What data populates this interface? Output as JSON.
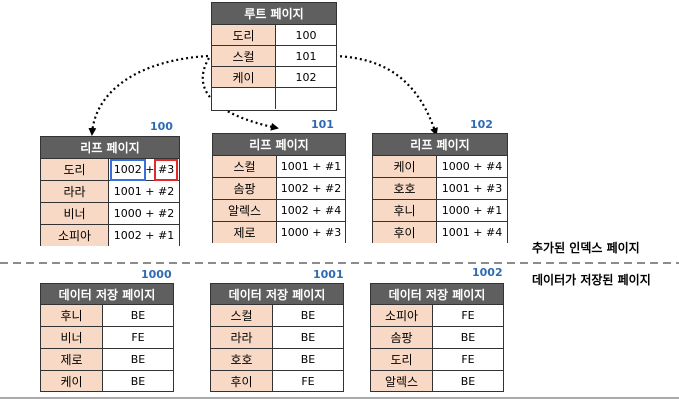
{
  "root_page": {
    "title": "루트 페이지",
    "rows": [
      {
        "key": "도리",
        "value": "100"
      },
      {
        "key": "스컬",
        "value": "101"
      },
      {
        "key": "케이",
        "value": "102"
      },
      {
        "key": "",
        "value": ""
      }
    ]
  },
  "leaf_pages": [
    {
      "number": "100",
      "title": "리프 페이지",
      "rows": [
        {
          "key": "도리",
          "page": "1002",
          "sep": " + ",
          "slot": "#3"
        },
        {
          "key": "라라",
          "page": "1001",
          "sep": " + ",
          "slot": "#2"
        },
        {
          "key": "비너",
          "page": "1000",
          "sep": " + ",
          "slot": "#2"
        },
        {
          "key": "소피아",
          "page": "1002",
          "sep": " + ",
          "slot": "#1"
        }
      ]
    },
    {
      "number": "101",
      "title": "리프 페이지",
      "rows": [
        {
          "key": "스컬",
          "page": "1001",
          "sep": " + ",
          "slot": "#1"
        },
        {
          "key": "솜팡",
          "page": "1002",
          "sep": " + ",
          "slot": "#2"
        },
        {
          "key": "알렉스",
          "page": "1002",
          "sep": " + ",
          "slot": "#4"
        },
        {
          "key": "제로",
          "page": "1000",
          "sep": " + ",
          "slot": "#3"
        }
      ]
    },
    {
      "number": "102",
      "title": "리프 페이지",
      "rows": [
        {
          "key": "케이",
          "page": "1000",
          "sep": " + ",
          "slot": "#4"
        },
        {
          "key": "호호",
          "page": "1001",
          "sep": " + ",
          "slot": "#3"
        },
        {
          "key": "후니",
          "page": "1000",
          "sep": " + ",
          "slot": "#1"
        },
        {
          "key": "후이",
          "page": "1001",
          "sep": " + ",
          "slot": "#4"
        }
      ]
    }
  ],
  "data_pages": [
    {
      "number": "1000",
      "title": "데이터 저장 페이지",
      "rows": [
        {
          "name": "후니",
          "role": "BE"
        },
        {
          "name": "비너",
          "role": "FE"
        },
        {
          "name": "제로",
          "role": "BE"
        },
        {
          "name": "케이",
          "role": "BE"
        }
      ]
    },
    {
      "number": "1001",
      "title": "데이터 저장 페이지",
      "rows": [
        {
          "name": "스컬",
          "role": "BE"
        },
        {
          "name": "라라",
          "role": "BE"
        },
        {
          "name": "호호",
          "role": "BE"
        },
        {
          "name": "후이",
          "role": "FE"
        }
      ]
    },
    {
      "number": "1002",
      "title": "데이터 저장 페이지",
      "rows": [
        {
          "name": "소피아",
          "role": "FE"
        },
        {
          "name": "솜팡",
          "role": "BE"
        },
        {
          "name": "도리",
          "role": "FE"
        },
        {
          "name": "알렉스",
          "role": "BE"
        }
      ]
    }
  ],
  "labels": {
    "index_pages": "추가된 인덱스 페이지",
    "data_pages": "데이터가 저장된 페이지"
  },
  "colors": {
    "header": "#5f5f5f",
    "key_cell": "#f8d9c5",
    "page_number": "#2e6bb5",
    "highlight_page": "#3a6fd8",
    "highlight_slot": "#e0282e"
  }
}
